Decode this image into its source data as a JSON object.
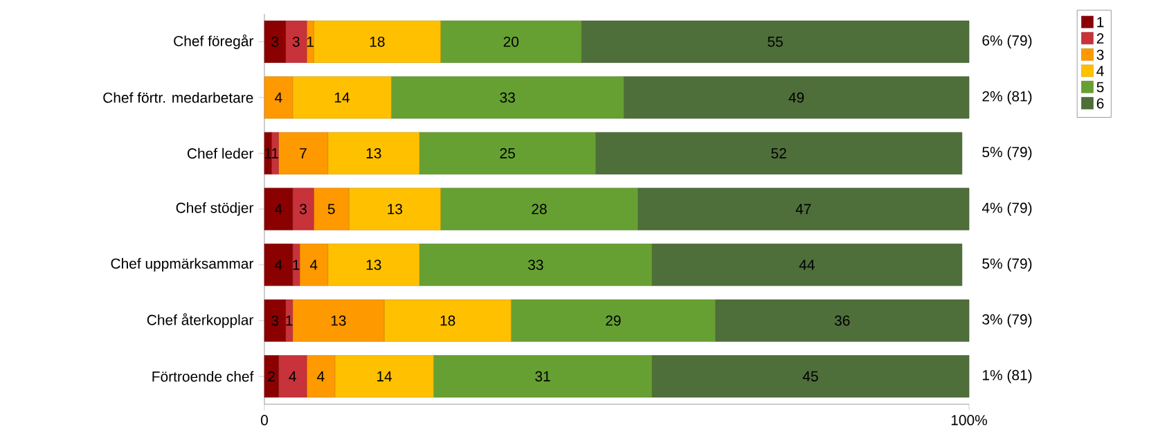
{
  "chart_data": {
    "type": "bar",
    "orientation": "horizontal",
    "stacked": true,
    "data_labels": true,
    "legend": "top right",
    "grid": false,
    "categories": [
      "Chef föregår",
      "Chef förtr. medarbetare",
      "Chef leder",
      "Chef stödjer",
      "Chef uppmärksammar",
      "Chef återkopplar",
      "Förtroende chef"
    ],
    "xlim": [
      0,
      100
    ],
    "xticks": [
      0,
      {
        "value": 100,
        "label": "100%"
      }
    ],
    "series": [
      {
        "name": "1",
        "color": "#8b0000",
        "values": [
          3,
          null,
          1,
          4,
          4,
          3,
          2
        ]
      },
      {
        "name": "2",
        "color": "#c8323a",
        "values": [
          3,
          null,
          1,
          3,
          1,
          1,
          4
        ]
      },
      {
        "name": "3",
        "color": "#ff9900",
        "values": [
          1,
          4,
          7,
          5,
          4,
          13,
          4
        ]
      },
      {
        "name": "4",
        "color": "#ffc000",
        "values": [
          18,
          14,
          13,
          13,
          13,
          18,
          14
        ]
      },
      {
        "name": "5",
        "color": "#66a032",
        "values": [
          20,
          33,
          25,
          28,
          33,
          29,
          31
        ]
      },
      {
        "name": "6",
        "color": "#4e6e3a",
        "values": [
          55,
          49,
          52,
          47,
          44,
          36,
          45
        ]
      }
    ],
    "annotations": [
      "6% (79)",
      "2% (81)",
      "5% (79)",
      "4% (79)",
      "5% (79)",
      "3% (79)",
      "1% (81)"
    ]
  }
}
